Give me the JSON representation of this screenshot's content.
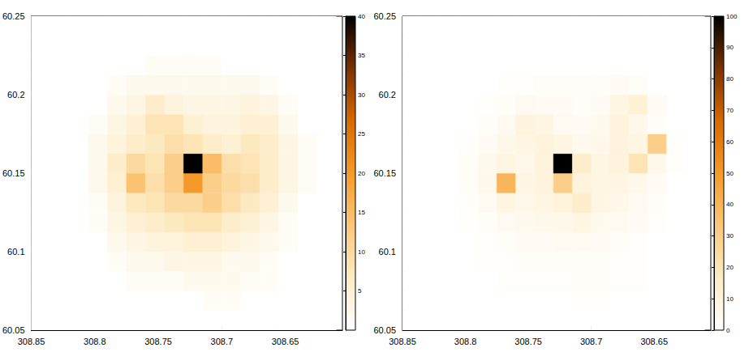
{
  "chart_data": [
    {
      "type": "heatmap",
      "xlim": [
        308.85,
        308.605
      ],
      "xticks": [
        308.85,
        308.8,
        308.75,
        308.7,
        308.65
      ],
      "ylim": [
        60.05,
        60.25
      ],
      "yticks": [
        60.05,
        60.1,
        60.15,
        60.2,
        60.25
      ],
      "x": [
        308.8425,
        308.8275,
        308.8125,
        308.7975,
        308.7825,
        308.7675,
        308.7525,
        308.7375,
        308.7225,
        308.7075,
        308.6925,
        308.6775,
        308.6625,
        308.6475,
        308.6325,
        308.6175
      ],
      "y": [
        60.05625,
        60.06875,
        60.08125,
        60.09375,
        60.10625,
        60.11875,
        60.13125,
        60.14375,
        60.15625,
        60.16875,
        60.18125,
        60.19375,
        60.20625,
        60.21875,
        60.23125,
        60.24375
      ],
      "cells": [
        [
          0,
          0,
          0,
          0,
          0,
          0,
          0,
          0,
          0,
          0,
          0,
          0,
          0,
          0,
          0,
          0
        ],
        [
          0,
          0,
          0,
          0,
          0,
          0,
          0,
          0,
          0,
          1,
          1,
          0,
          0,
          0,
          0,
          0
        ],
        [
          0,
          0,
          0,
          0,
          0,
          1,
          1,
          1,
          2,
          2,
          2,
          1,
          1,
          0,
          0,
          0
        ],
        [
          0,
          0,
          0,
          0,
          1,
          2,
          2,
          3,
          3,
          3,
          2,
          2,
          1,
          0,
          0,
          0
        ],
        [
          0,
          0,
          0,
          0,
          2,
          3,
          4,
          4,
          5,
          5,
          4,
          3,
          2,
          1,
          0,
          0
        ],
        [
          0,
          0,
          0,
          1,
          3,
          5,
          6,
          7,
          8,
          8,
          6,
          5,
          3,
          1,
          0,
          0
        ],
        [
          0,
          0,
          0,
          1,
          4,
          7,
          8,
          10,
          10,
          12,
          9,
          7,
          5,
          2,
          0,
          0
        ],
        [
          0,
          0,
          0,
          2,
          5,
          14,
          9,
          12,
          20,
          12,
          10,
          9,
          6,
          3,
          1,
          0
        ],
        [
          0,
          0,
          0,
          2,
          6,
          10,
          8,
          12,
          40,
          15,
          9,
          8,
          6,
          3,
          1,
          0
        ],
        [
          0,
          0,
          0,
          2,
          4,
          6,
          7,
          9,
          8,
          6,
          5,
          7,
          6,
          3,
          1,
          0
        ],
        [
          0,
          0,
          0,
          1,
          3,
          5,
          8,
          8,
          5,
          4,
          4,
          5,
          5,
          2,
          0,
          0
        ],
        [
          0,
          0,
          0,
          0,
          2,
          3,
          6,
          4,
          3,
          3,
          3,
          4,
          3,
          1,
          0,
          0
        ],
        [
          0,
          0,
          0,
          0,
          1,
          2,
          2,
          2,
          2,
          2,
          2,
          2,
          1,
          0,
          0,
          0
        ],
        [
          0,
          0,
          0,
          0,
          0,
          0,
          1,
          1,
          1,
          1,
          0,
          0,
          0,
          0,
          0,
          0
        ],
        [
          0,
          0,
          0,
          0,
          0,
          0,
          0,
          0,
          0,
          0,
          0,
          0,
          0,
          0,
          0,
          0
        ],
        [
          0,
          0,
          0,
          0,
          0,
          0,
          0,
          0,
          0,
          0,
          0,
          0,
          0,
          0,
          0,
          0
        ]
      ],
      "colorbar_lim": [
        0,
        40
      ],
      "colorbar_ticks": [
        5,
        10,
        15,
        20,
        25,
        30,
        35,
        40
      ]
    },
    {
      "type": "heatmap",
      "xlim": [
        308.85,
        308.605
      ],
      "xticks": [
        308.85,
        308.8,
        308.75,
        308.7,
        308.65
      ],
      "ylim": [
        60.05,
        60.25
      ],
      "yticks": [
        60.05,
        60.1,
        60.15,
        60.2,
        60.25
      ],
      "x": [
        308.8425,
        308.8275,
        308.8125,
        308.7975,
        308.7825,
        308.7675,
        308.7525,
        308.7375,
        308.7225,
        308.7075,
        308.6925,
        308.6775,
        308.6625,
        308.6475,
        308.6325,
        308.6175
      ],
      "y": [
        60.05625,
        60.06875,
        60.08125,
        60.09375,
        60.10625,
        60.11875,
        60.13125,
        60.14375,
        60.15625,
        60.16875,
        60.18125,
        60.19375,
        60.20625,
        60.21875,
        60.23125,
        60.24375
      ],
      "cells": [
        [
          0,
          0,
          0,
          0,
          0,
          0,
          0,
          0,
          0,
          0,
          0,
          0,
          0,
          0,
          0,
          0
        ],
        [
          0,
          0,
          0,
          0,
          0,
          0,
          0,
          0,
          0,
          1,
          1,
          0,
          0,
          0,
          0,
          0
        ],
        [
          0,
          0,
          0,
          0,
          0,
          1,
          1,
          1,
          1,
          2,
          2,
          1,
          1,
          0,
          0,
          0
        ],
        [
          0,
          0,
          0,
          0,
          1,
          1,
          2,
          2,
          2,
          2,
          2,
          1,
          1,
          0,
          0,
          0
        ],
        [
          0,
          0,
          0,
          0,
          1,
          2,
          3,
          3,
          4,
          4,
          3,
          2,
          1,
          0,
          0,
          0
        ],
        [
          0,
          0,
          0,
          1,
          2,
          4,
          5,
          6,
          6,
          8,
          5,
          4,
          3,
          1,
          0,
          0
        ],
        [
          0,
          0,
          0,
          1,
          4,
          8,
          6,
          8,
          10,
          15,
          8,
          6,
          4,
          2,
          0,
          0
        ],
        [
          0,
          0,
          0,
          2,
          6,
          40,
          8,
          10,
          30,
          10,
          8,
          8,
          6,
          3,
          0,
          0
        ],
        [
          0,
          0,
          0,
          2,
          5,
          8,
          6,
          10,
          100,
          15,
          8,
          10,
          20,
          6,
          1,
          0
        ],
        [
          0,
          0,
          0,
          1,
          3,
          6,
          8,
          10,
          8,
          5,
          6,
          10,
          8,
          30,
          1,
          0
        ],
        [
          0,
          0,
          0,
          0,
          2,
          4,
          10,
          8,
          4,
          3,
          5,
          10,
          6,
          2,
          0,
          0
        ],
        [
          0,
          0,
          0,
          0,
          1,
          2,
          4,
          3,
          3,
          2,
          3,
          8,
          12,
          3,
          0,
          0
        ],
        [
          0,
          0,
          0,
          0,
          0,
          1,
          1,
          2,
          2,
          2,
          2,
          3,
          2,
          0,
          0,
          0
        ],
        [
          0,
          0,
          0,
          0,
          0,
          0,
          0,
          0,
          0,
          0,
          0,
          0,
          0,
          0,
          0,
          0
        ],
        [
          0,
          0,
          0,
          0,
          0,
          0,
          0,
          0,
          0,
          0,
          0,
          0,
          0,
          0,
          0,
          0
        ],
        [
          0,
          0,
          0,
          0,
          0,
          0,
          0,
          0,
          0,
          0,
          0,
          0,
          0,
          0,
          0,
          0
        ]
      ],
      "colorbar_lim": [
        0,
        100
      ],
      "colorbar_ticks": [
        0,
        10,
        20,
        30,
        40,
        50,
        60,
        70,
        80,
        90,
        100
      ]
    }
  ]
}
